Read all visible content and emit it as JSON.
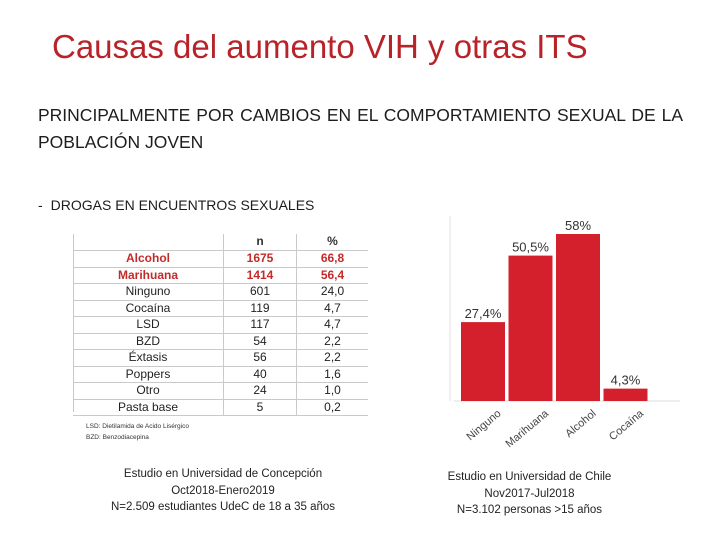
{
  "title": "Causas del aumento VIH y otras ITS",
  "subtitle": "PRINCIPALMENTE POR CAMBIOS EN EL COMPORTAMIENTO SEXUAL DE LA POBLACIÓN JOVEN",
  "bullet": {
    "dash": "-",
    "text": "DROGAS EN ENCUENTROS SEXUALES"
  },
  "table": {
    "headers": [
      "",
      "n",
      "%"
    ],
    "rows": [
      {
        "label": "Alcohol",
        "n": "1675",
        "pct": "66,8",
        "highlight": true
      },
      {
        "label": "Marihuana",
        "n": "1414",
        "pct": "56,4",
        "highlight": true
      },
      {
        "label": "Ninguno",
        "n": "601",
        "pct": "24,0",
        "highlight": false
      },
      {
        "label": "Cocaína",
        "n": "119",
        "pct": "4,7",
        "highlight": false
      },
      {
        "label": "LSD",
        "n": "117",
        "pct": "4,7",
        "highlight": false
      },
      {
        "label": "BZD",
        "n": "54",
        "pct": "2,2",
        "highlight": false
      },
      {
        "label": "Éxtasis",
        "n": "56",
        "pct": "2,2",
        "highlight": false
      },
      {
        "label": "Poppers",
        "n": "40",
        "pct": "1,6",
        "highlight": false
      },
      {
        "label": "Otro",
        "n": "24",
        "pct": "1,0",
        "highlight": false
      },
      {
        "label": "Pasta base",
        "n": "5",
        "pct": "0,2",
        "highlight": false
      }
    ],
    "footnote_1": "LSD: Dietilamida de Acido Lisérgico",
    "footnote_2": "BZD: Benzodiacepina"
  },
  "caption_left": {
    "line1": "Estudio en Universidad de Concepción",
    "line2": "Oct2018-Enero2019",
    "line3": "N=2.509 estudiantes UdeC de 18 a 35 años"
  },
  "caption_right": {
    "line1": "Estudio en Universidad de Chile",
    "line2": "Nov2017-Jul2018",
    "line3": "N=3.102 personas >15 años"
  },
  "colors": {
    "title": "#b8232a",
    "bar": "#d4202c",
    "highlight_text": "#c42a2a"
  },
  "chart_data": {
    "type": "bar",
    "categories": [
      "Ninguno",
      "Marihuana",
      "Alcohol",
      "Cocaína"
    ],
    "values": [
      27.4,
      50.5,
      58,
      4.3
    ],
    "value_labels": [
      "27,4%",
      "50,5%",
      "58%",
      "4,3%"
    ],
    "ylim": [
      0,
      58
    ],
    "grid": false,
    "xlabel": "",
    "ylabel": ""
  }
}
